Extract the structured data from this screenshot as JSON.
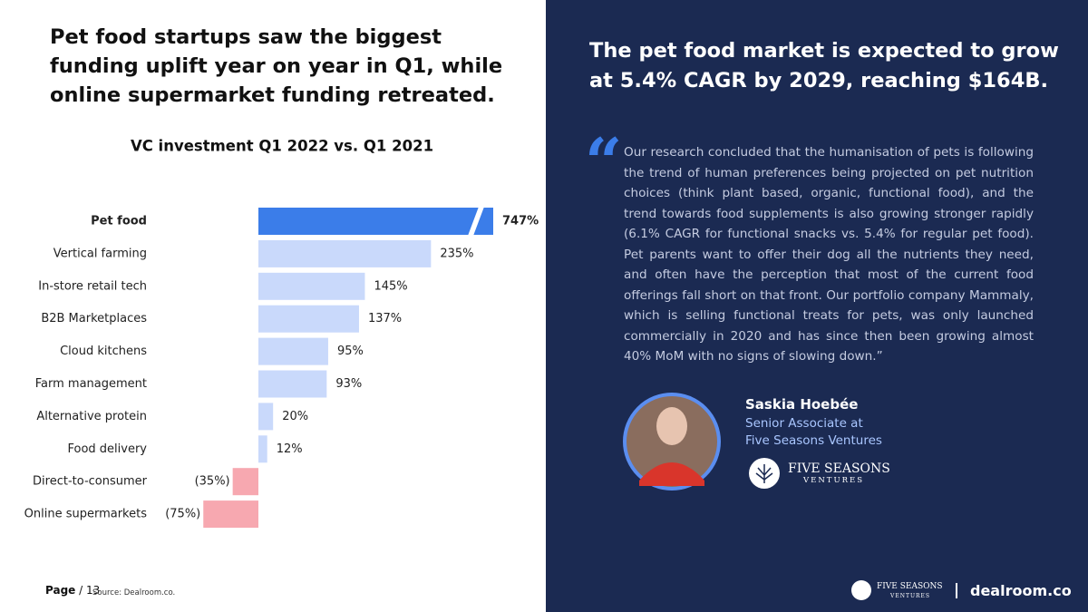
{
  "left_title": "Pet food startups saw the biggest funding uplift year on year in Q1, while online supermarket funding retreated.",
  "right_title": "The pet food market is expected to grow at 5.4% CAGR by 2029, reaching $164B.",
  "quote": "Our research concluded that the humanisation of pets is following the trend of human preferences being projected on pet nutrition choices (think plant based, organic, functional food), and the trend towards food supplements is also growing stronger rapidly (6.1% CAGR for functional snacks vs. 5.4% for regular pet food). Pet parents want to offer their dog all the nutrients they need, and often have the perception that most of the current food offerings fall short on that front. Our portfolio company Mammaly, which is selling functional treats for pets, was only launched commercially in 2020 and has since then been growing almost 40% MoM with no signs of slowing down.”",
  "person": {
    "name": "Saskia Hoebée",
    "role": "Senior Associate at",
    "company": "Five Seasons Ventures"
  },
  "logo": {
    "name": "FIVE SEASONS",
    "sub": "VENTURES"
  },
  "footer": {
    "page": "Page",
    "page_count": "/ 13",
    "source": "Source: Dealroom.co.",
    "brand": "dealroom.co"
  },
  "chart_data": {
    "type": "hbar",
    "title": "VC investment Q1 2022 vs. Q1 2021",
    "categories": [
      "Pet food",
      "Vertical farming",
      "In-store retail tech",
      "B2B Marketplaces",
      "Cloud kitchens",
      "Farm management",
      "Alternative protein",
      "Food delivery",
      "Direct-to-consumer",
      "Online supermarkets"
    ],
    "values": [
      747,
      235,
      145,
      137,
      95,
      93,
      20,
      12,
      -35,
      -75
    ],
    "value_labels": [
      "747%",
      "235%",
      "145%",
      "137%",
      "95%",
      "93%",
      "20%",
      "12%",
      "(35%)",
      "(75%)"
    ],
    "color": "#c9d9fb",
    "negative_color": "#f7a8b0",
    "highlight_color": "#3b7de9",
    "highlight": 0
  }
}
